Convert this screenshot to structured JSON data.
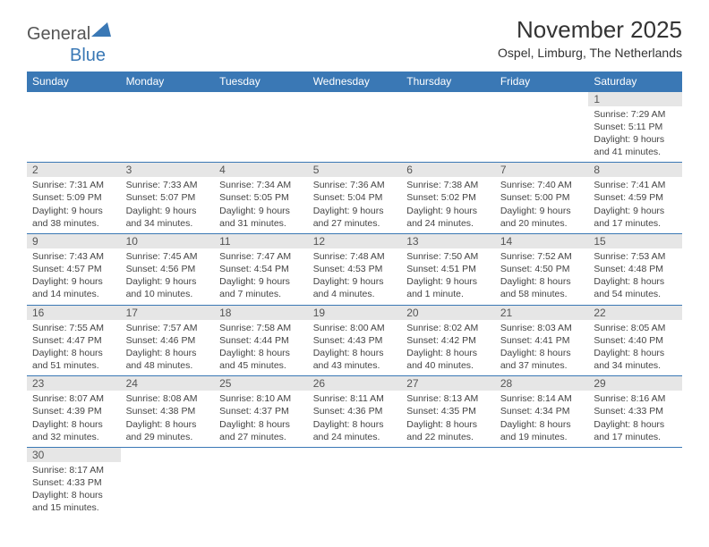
{
  "logo": {
    "part1": "General",
    "part2": "Blue"
  },
  "title": "November 2025",
  "location": "Ospel, Limburg, The Netherlands",
  "header_bg": "#3a78b5",
  "daynum_bg": "#e6e6e6",
  "days": [
    "Sunday",
    "Monday",
    "Tuesday",
    "Wednesday",
    "Thursday",
    "Friday",
    "Saturday"
  ],
  "weeks": [
    [
      null,
      null,
      null,
      null,
      null,
      null,
      {
        "n": "1",
        "sr": "Sunrise: 7:29 AM",
        "ss": "Sunset: 5:11 PM",
        "d1": "Daylight: 9 hours",
        "d2": "and 41 minutes."
      }
    ],
    [
      {
        "n": "2",
        "sr": "Sunrise: 7:31 AM",
        "ss": "Sunset: 5:09 PM",
        "d1": "Daylight: 9 hours",
        "d2": "and 38 minutes."
      },
      {
        "n": "3",
        "sr": "Sunrise: 7:33 AM",
        "ss": "Sunset: 5:07 PM",
        "d1": "Daylight: 9 hours",
        "d2": "and 34 minutes."
      },
      {
        "n": "4",
        "sr": "Sunrise: 7:34 AM",
        "ss": "Sunset: 5:05 PM",
        "d1": "Daylight: 9 hours",
        "d2": "and 31 minutes."
      },
      {
        "n": "5",
        "sr": "Sunrise: 7:36 AM",
        "ss": "Sunset: 5:04 PM",
        "d1": "Daylight: 9 hours",
        "d2": "and 27 minutes."
      },
      {
        "n": "6",
        "sr": "Sunrise: 7:38 AM",
        "ss": "Sunset: 5:02 PM",
        "d1": "Daylight: 9 hours",
        "d2": "and 24 minutes."
      },
      {
        "n": "7",
        "sr": "Sunrise: 7:40 AM",
        "ss": "Sunset: 5:00 PM",
        "d1": "Daylight: 9 hours",
        "d2": "and 20 minutes."
      },
      {
        "n": "8",
        "sr": "Sunrise: 7:41 AM",
        "ss": "Sunset: 4:59 PM",
        "d1": "Daylight: 9 hours",
        "d2": "and 17 minutes."
      }
    ],
    [
      {
        "n": "9",
        "sr": "Sunrise: 7:43 AM",
        "ss": "Sunset: 4:57 PM",
        "d1": "Daylight: 9 hours",
        "d2": "and 14 minutes."
      },
      {
        "n": "10",
        "sr": "Sunrise: 7:45 AM",
        "ss": "Sunset: 4:56 PM",
        "d1": "Daylight: 9 hours",
        "d2": "and 10 minutes."
      },
      {
        "n": "11",
        "sr": "Sunrise: 7:47 AM",
        "ss": "Sunset: 4:54 PM",
        "d1": "Daylight: 9 hours",
        "d2": "and 7 minutes."
      },
      {
        "n": "12",
        "sr": "Sunrise: 7:48 AM",
        "ss": "Sunset: 4:53 PM",
        "d1": "Daylight: 9 hours",
        "d2": "and 4 minutes."
      },
      {
        "n": "13",
        "sr": "Sunrise: 7:50 AM",
        "ss": "Sunset: 4:51 PM",
        "d1": "Daylight: 9 hours",
        "d2": "and 1 minute."
      },
      {
        "n": "14",
        "sr": "Sunrise: 7:52 AM",
        "ss": "Sunset: 4:50 PM",
        "d1": "Daylight: 8 hours",
        "d2": "and 58 minutes."
      },
      {
        "n": "15",
        "sr": "Sunrise: 7:53 AM",
        "ss": "Sunset: 4:48 PM",
        "d1": "Daylight: 8 hours",
        "d2": "and 54 minutes."
      }
    ],
    [
      {
        "n": "16",
        "sr": "Sunrise: 7:55 AM",
        "ss": "Sunset: 4:47 PM",
        "d1": "Daylight: 8 hours",
        "d2": "and 51 minutes."
      },
      {
        "n": "17",
        "sr": "Sunrise: 7:57 AM",
        "ss": "Sunset: 4:46 PM",
        "d1": "Daylight: 8 hours",
        "d2": "and 48 minutes."
      },
      {
        "n": "18",
        "sr": "Sunrise: 7:58 AM",
        "ss": "Sunset: 4:44 PM",
        "d1": "Daylight: 8 hours",
        "d2": "and 45 minutes."
      },
      {
        "n": "19",
        "sr": "Sunrise: 8:00 AM",
        "ss": "Sunset: 4:43 PM",
        "d1": "Daylight: 8 hours",
        "d2": "and 43 minutes."
      },
      {
        "n": "20",
        "sr": "Sunrise: 8:02 AM",
        "ss": "Sunset: 4:42 PM",
        "d1": "Daylight: 8 hours",
        "d2": "and 40 minutes."
      },
      {
        "n": "21",
        "sr": "Sunrise: 8:03 AM",
        "ss": "Sunset: 4:41 PM",
        "d1": "Daylight: 8 hours",
        "d2": "and 37 minutes."
      },
      {
        "n": "22",
        "sr": "Sunrise: 8:05 AM",
        "ss": "Sunset: 4:40 PM",
        "d1": "Daylight: 8 hours",
        "d2": "and 34 minutes."
      }
    ],
    [
      {
        "n": "23",
        "sr": "Sunrise: 8:07 AM",
        "ss": "Sunset: 4:39 PM",
        "d1": "Daylight: 8 hours",
        "d2": "and 32 minutes."
      },
      {
        "n": "24",
        "sr": "Sunrise: 8:08 AM",
        "ss": "Sunset: 4:38 PM",
        "d1": "Daylight: 8 hours",
        "d2": "and 29 minutes."
      },
      {
        "n": "25",
        "sr": "Sunrise: 8:10 AM",
        "ss": "Sunset: 4:37 PM",
        "d1": "Daylight: 8 hours",
        "d2": "and 27 minutes."
      },
      {
        "n": "26",
        "sr": "Sunrise: 8:11 AM",
        "ss": "Sunset: 4:36 PM",
        "d1": "Daylight: 8 hours",
        "d2": "and 24 minutes."
      },
      {
        "n": "27",
        "sr": "Sunrise: 8:13 AM",
        "ss": "Sunset: 4:35 PM",
        "d1": "Daylight: 8 hours",
        "d2": "and 22 minutes."
      },
      {
        "n": "28",
        "sr": "Sunrise: 8:14 AM",
        "ss": "Sunset: 4:34 PM",
        "d1": "Daylight: 8 hours",
        "d2": "and 19 minutes."
      },
      {
        "n": "29",
        "sr": "Sunrise: 8:16 AM",
        "ss": "Sunset: 4:33 PM",
        "d1": "Daylight: 8 hours",
        "d2": "and 17 minutes."
      }
    ],
    [
      {
        "n": "30",
        "sr": "Sunrise: 8:17 AM",
        "ss": "Sunset: 4:33 PM",
        "d1": "Daylight: 8 hours",
        "d2": "and 15 minutes."
      },
      null,
      null,
      null,
      null,
      null,
      null
    ]
  ]
}
